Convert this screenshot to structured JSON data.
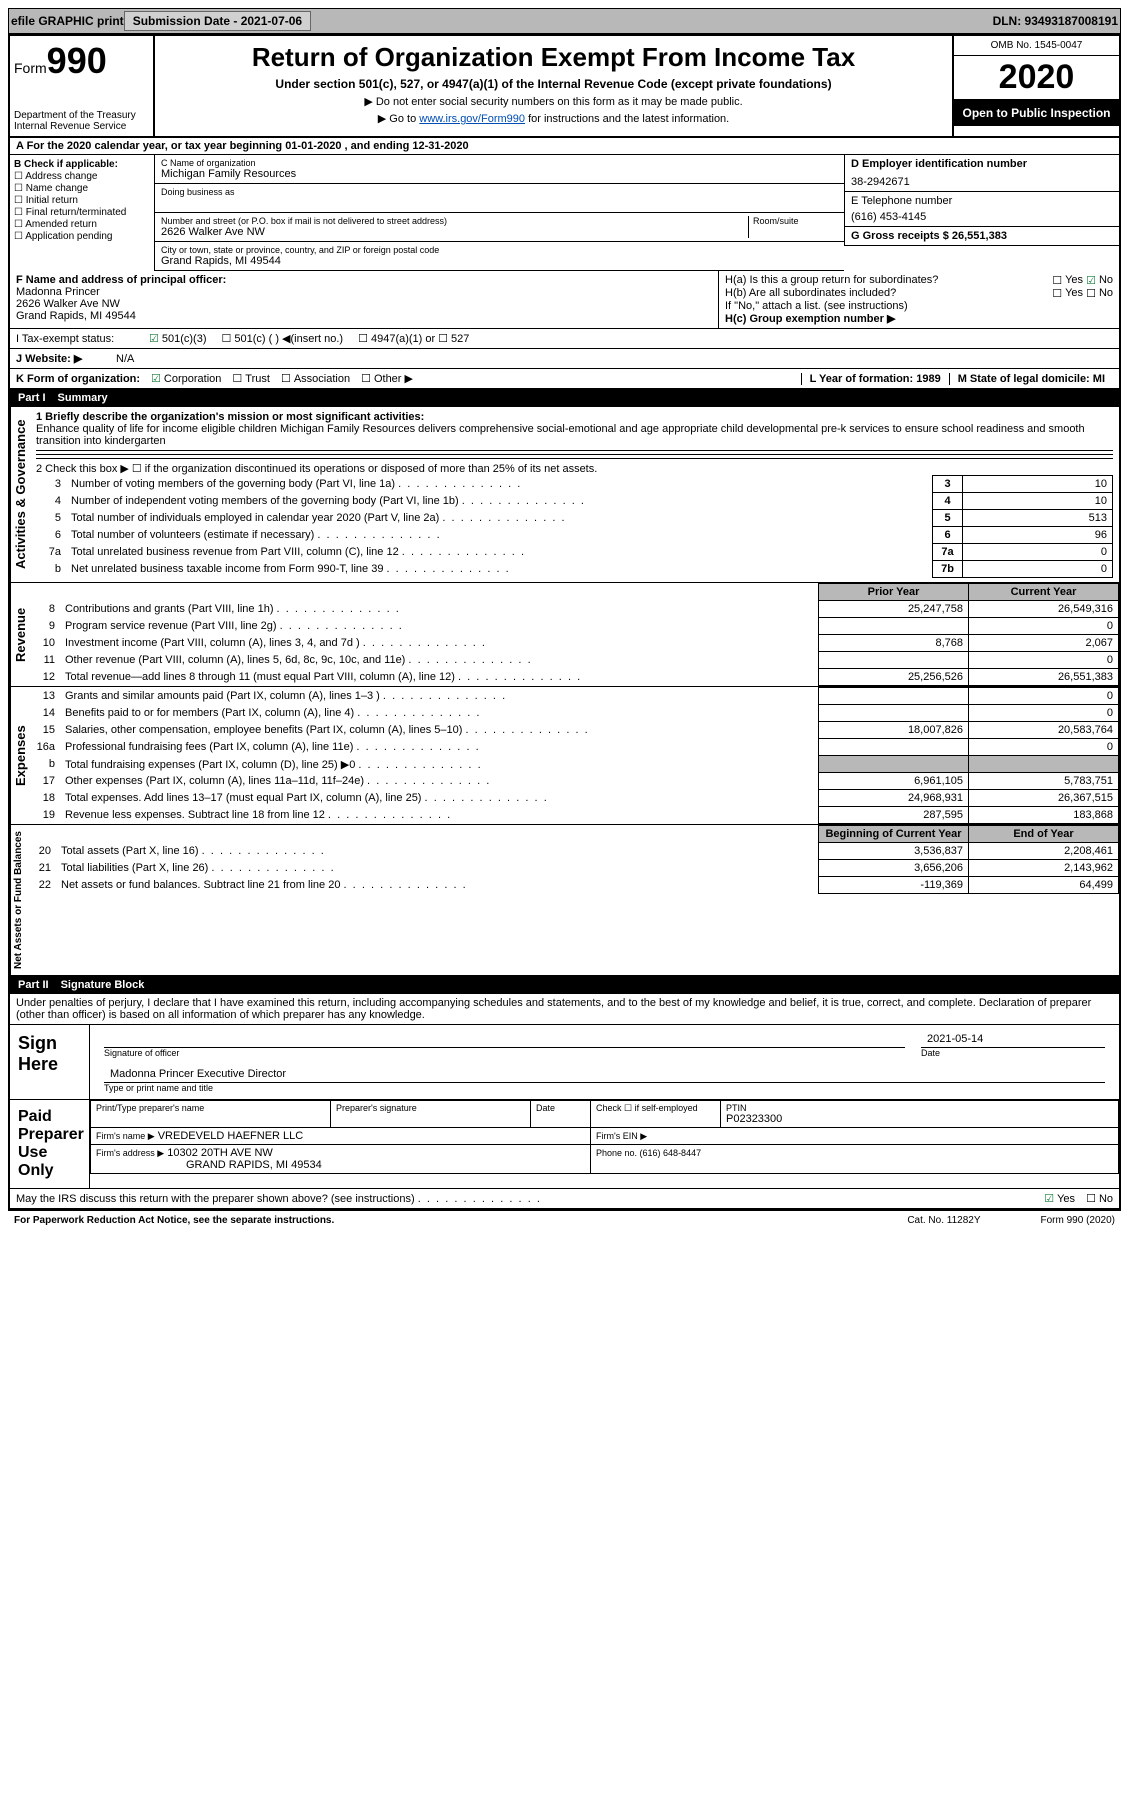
{
  "topbar": {
    "efile": "efile GRAPHIC print",
    "sub_label": "Submission Date - 2021-07-06",
    "dln": "DLN: 93493187008191"
  },
  "header": {
    "form_label": "Form",
    "form_num": "990",
    "dept": "Department of the Treasury\nInternal Revenue Service",
    "title": "Return of Organization Exempt From Income Tax",
    "subtitle": "Under section 501(c), 527, or 4947(a)(1) of the Internal Revenue Code (except private foundations)",
    "note1": "▶ Do not enter social security numbers on this form as it may be made public.",
    "note2_pre": "▶ Go to ",
    "note2_link": "www.irs.gov/Form990",
    "note2_post": " for instructions and the latest information.",
    "omb": "OMB No. 1545-0047",
    "year": "2020",
    "open": "Open to Public Inspection"
  },
  "sectionA": "A For the 2020 calendar year, or tax year beginning 01-01-2020    , and ending 12-31-2020",
  "checkB": {
    "label": "B Check if applicable:",
    "items": [
      "Address change",
      "Name change",
      "Initial return",
      "Final return/terminated",
      "Amended return",
      "Application pending"
    ]
  },
  "blockC": {
    "name_label": "C Name of organization",
    "name": "Michigan Family Resources",
    "dba_label": "Doing business as",
    "addr_label": "Number and street (or P.O. box if mail is not delivered to street address)",
    "room_label": "Room/suite",
    "addr": "2626 Walker Ave NW",
    "city_label": "City or town, state or province, country, and ZIP or foreign postal code",
    "city": "Grand Rapids, MI  49544"
  },
  "blockD": {
    "label": "D Employer identification number",
    "value": "38-2942671"
  },
  "blockE": {
    "label": "E Telephone number",
    "value": "(616) 453-4145"
  },
  "blockG": {
    "label": "G Gross receipts $ 26,551,383"
  },
  "blockF": {
    "label": "F  Name and address of principal officer:",
    "name": "Madonna Princer",
    "addr1": "2626 Walker Ave NW",
    "addr2": "Grand Rapids, MI  49544"
  },
  "blockH": {
    "ha": "H(a)  Is this a group return for subordinates?",
    "ha_yes": "Yes",
    "ha_no": "No",
    "hb": "H(b)  Are all subordinates included?",
    "hb_note": "If \"No,\" attach a list. (see instructions)",
    "hc": "H(c)  Group exemption number ▶"
  },
  "lineI": {
    "label": "I  Tax-exempt status:",
    "opt1": "501(c)(3)",
    "opt2": "501(c) (  ) ◀(insert no.)",
    "opt3": "4947(a)(1) or",
    "opt4": "527"
  },
  "lineJ": {
    "label": "J  Website: ▶",
    "value": "N/A"
  },
  "lineK": {
    "label": "K Form of organization:",
    "opts": [
      "Corporation",
      "Trust",
      "Association",
      "Other ▶"
    ]
  },
  "lineL": {
    "label": "L Year of formation: 1989"
  },
  "lineM": {
    "label": "M State of legal domicile: MI"
  },
  "part1": {
    "num": "Part I",
    "title": "Summary"
  },
  "summary": {
    "line1_label": "1  Briefly describe the organization's mission or most significant activities:",
    "line1_text": "Enhance quality of life for income eligible children Michigan Family Resources delivers comprehensive social-emotional and age appropriate child developmental pre-k services to ensure school readiness and smooth transition into kindergarten",
    "line2": "2   Check this box ▶ ☐  if the organization discontinued its operations or disposed of more than 25% of its net assets.",
    "rows_top": [
      {
        "n": "3",
        "d": "Number of voting members of the governing body (Part VI, line 1a)",
        "b": "3",
        "v": "10"
      },
      {
        "n": "4",
        "d": "Number of independent voting members of the governing body (Part VI, line 1b)",
        "b": "4",
        "v": "10"
      },
      {
        "n": "5",
        "d": "Total number of individuals employed in calendar year 2020 (Part V, line 2a)",
        "b": "5",
        "v": "513"
      },
      {
        "n": "6",
        "d": "Total number of volunteers (estimate if necessary)",
        "b": "6",
        "v": "96"
      },
      {
        "n": "7a",
        "d": "Total unrelated business revenue from Part VIII, column (C), line 12",
        "b": "7a",
        "v": "0"
      },
      {
        "n": "b",
        "d": "Net unrelated business taxable income from Form 990-T, line 39",
        "b": "7b",
        "v": "0"
      }
    ],
    "col_prior": "Prior Year",
    "col_current": "Current Year",
    "rev_rows": [
      {
        "n": "8",
        "d": "Contributions and grants (Part VIII, line 1h)",
        "p": "25,247,758",
        "c": "26,549,316"
      },
      {
        "n": "9",
        "d": "Program service revenue (Part VIII, line 2g)",
        "p": "",
        "c": "0"
      },
      {
        "n": "10",
        "d": "Investment income (Part VIII, column (A), lines 3, 4, and 7d )",
        "p": "8,768",
        "c": "2,067"
      },
      {
        "n": "11",
        "d": "Other revenue (Part VIII, column (A), lines 5, 6d, 8c, 9c, 10c, and 11e)",
        "p": "",
        "c": "0"
      },
      {
        "n": "12",
        "d": "Total revenue—add lines 8 through 11 (must equal Part VIII, column (A), line 12)",
        "p": "25,256,526",
        "c": "26,551,383"
      }
    ],
    "exp_rows": [
      {
        "n": "13",
        "d": "Grants and similar amounts paid (Part IX, column (A), lines 1–3 )",
        "p": "",
        "c": "0"
      },
      {
        "n": "14",
        "d": "Benefits paid to or for members (Part IX, column (A), line 4)",
        "p": "",
        "c": "0"
      },
      {
        "n": "15",
        "d": "Salaries, other compensation, employee benefits (Part IX, column (A), lines 5–10)",
        "p": "18,007,826",
        "c": "20,583,764"
      },
      {
        "n": "16a",
        "d": "Professional fundraising fees (Part IX, column (A), line 11e)",
        "p": "",
        "c": "0"
      },
      {
        "n": "b",
        "d": "Total fundraising expenses (Part IX, column (D), line 25) ▶0",
        "p": "SHADE",
        "c": "SHADE"
      },
      {
        "n": "17",
        "d": "Other expenses (Part IX, column (A), lines 11a–11d, 11f–24e)",
        "p": "6,961,105",
        "c": "5,783,751"
      },
      {
        "n": "18",
        "d": "Total expenses. Add lines 13–17 (must equal Part IX, column (A), line 25)",
        "p": "24,968,931",
        "c": "26,367,515"
      },
      {
        "n": "19",
        "d": "Revenue less expenses. Subtract line 18 from line 12",
        "p": "287,595",
        "c": "183,868"
      }
    ],
    "col_boy": "Beginning of Current Year",
    "col_eoy": "End of Year",
    "net_rows": [
      {
        "n": "20",
        "d": "Total assets (Part X, line 16)",
        "p": "3,536,837",
        "c": "2,208,461"
      },
      {
        "n": "21",
        "d": "Total liabilities (Part X, line 26)",
        "p": "3,656,206",
        "c": "2,143,962"
      },
      {
        "n": "22",
        "d": "Net assets or fund balances. Subtract line 21 from line 20",
        "p": "-119,369",
        "c": "64,499"
      }
    ]
  },
  "part2": {
    "num": "Part II",
    "title": "Signature Block"
  },
  "sig": {
    "penalties": "Under penalties of perjury, I declare that I have examined this return, including accompanying schedules and statements, and to the best of my knowledge and belief, it is true, correct, and complete. Declaration of preparer (other than officer) is based on all information of which preparer has any knowledge.",
    "sign_here": "Sign Here",
    "sig_officer": "Signature of officer",
    "date_label": "Date",
    "date": "2021-05-14",
    "name_title": "Madonna Princer  Executive Director",
    "name_title_label": "Type or print name and title",
    "paid": "Paid Preparer Use Only",
    "prep_name_label": "Print/Type preparer's name",
    "prep_sig_label": "Preparer's signature",
    "check_self": "Check ☐ if self-employed",
    "ptin_label": "PTIN",
    "ptin": "P02323300",
    "firm_name_label": "Firm's name    ▶",
    "firm_name": "VREDEVELD HAEFNER LLC",
    "firm_ein_label": "Firm's EIN ▶",
    "firm_addr_label": "Firm's address ▶",
    "firm_addr1": "10302 20TH AVE NW",
    "firm_addr2": "GRAND RAPIDS, MI  49534",
    "phone_label": "Phone no. (616) 648-8447",
    "discuss": "May the IRS discuss this return with the preparer shown above? (see instructions)",
    "yes": "Yes",
    "no": "No"
  },
  "footer": {
    "pra": "For Paperwork Reduction Act Notice, see the separate instructions.",
    "cat": "Cat. No. 11282Y",
    "form": "Form 990 (2020)"
  },
  "vert": {
    "gov": "Activities & Governance",
    "rev": "Revenue",
    "exp": "Expenses",
    "net": "Net Assets or Fund Balances"
  }
}
